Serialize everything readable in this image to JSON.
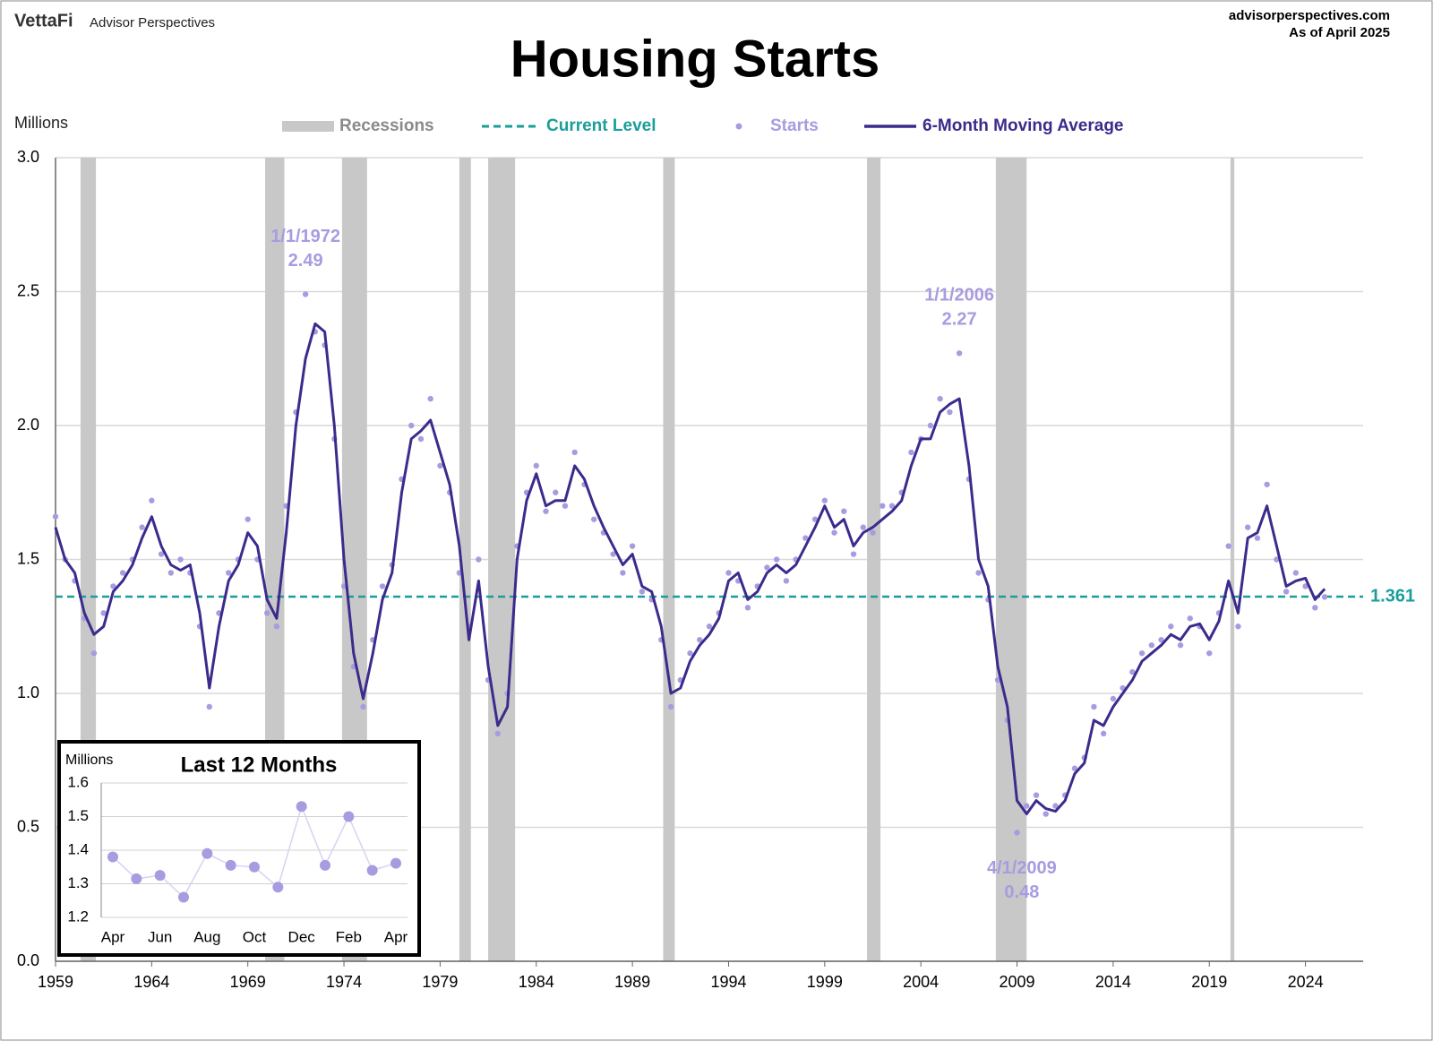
{
  "header": {
    "brand": "VettaFi",
    "brand_sub": "Advisor Perspectives",
    "site": "advisorperspectives.com",
    "as_of": "As of April 2025"
  },
  "chart_data": [
    {
      "type": "line",
      "title": "Housing Starts",
      "y_label": "Millions",
      "xlim": [
        1959,
        2027
      ],
      "xticks": [
        1959,
        1964,
        1969,
        1974,
        1979,
        1984,
        1989,
        1994,
        1999,
        2004,
        2009,
        2014,
        2019,
        2024
      ],
      "ylim": [
        0,
        3
      ],
      "yticks": [
        {
          "value": 0,
          "label": "0.0"
        },
        0.5,
        {
          "value": 1,
          "label": "1.0"
        },
        1.5,
        {
          "value": 2,
          "label": "2.0"
        },
        2.5,
        {
          "value": 3,
          "label": "3.0"
        }
      ],
      "grid": true,
      "recessions": {
        "name": "Recessions",
        "color": "#c8c8c8",
        "periods": [
          [
            1960.3,
            1961.1
          ],
          [
            1969.9,
            1970.9
          ],
          [
            1973.9,
            1975.2
          ],
          [
            1980.0,
            1980.6
          ],
          [
            1981.5,
            1982.9
          ],
          [
            1990.6,
            1991.2
          ],
          [
            2001.2,
            2001.9
          ],
          [
            2007.9,
            2009.5
          ],
          [
            2020.1,
            2020.3
          ]
        ]
      },
      "current_level": {
        "name": "Current Level",
        "value": 1.361,
        "color": "#1a9e9a"
      },
      "x": [
        1959,
        1959.5,
        1960,
        1960.5,
        1961,
        1961.5,
        1962,
        1962.5,
        1963,
        1963.5,
        1964,
        1964.5,
        1965,
        1965.5,
        1966,
        1966.5,
        1967,
        1967.5,
        1968,
        1968.5,
        1969,
        1969.5,
        1970,
        1970.5,
        1971,
        1971.5,
        1972,
        1972.5,
        1973,
        1973.5,
        1974,
        1974.5,
        1975,
        1975.5,
        1976,
        1976.5,
        1977,
        1977.5,
        1978,
        1978.5,
        1979,
        1979.5,
        1980,
        1980.5,
        1981,
        1981.5,
        1982,
        1982.5,
        1983,
        1983.5,
        1984,
        1984.5,
        1985,
        1985.5,
        1986,
        1986.5,
        1987,
        1987.5,
        1988,
        1988.5,
        1989,
        1989.5,
        1990,
        1990.5,
        1991,
        1991.5,
        1992,
        1992.5,
        1993,
        1993.5,
        1994,
        1994.5,
        1995,
        1995.5,
        1996,
        1996.5,
        1997,
        1997.5,
        1998,
        1998.5,
        1999,
        1999.5,
        2000,
        2000.5,
        2001,
        2001.5,
        2002,
        2002.5,
        2003,
        2003.5,
        2004,
        2004.5,
        2005,
        2005.5,
        2006,
        2006.5,
        2007,
        2007.5,
        2008,
        2008.5,
        2009,
        2009.5,
        2010,
        2010.5,
        2011,
        2011.5,
        2012,
        2012.5,
        2013,
        2013.5,
        2014,
        2014.5,
        2015,
        2015.5,
        2016,
        2016.5,
        2017,
        2017.5,
        2018,
        2018.5,
        2019,
        2019.5,
        2020,
        2020.5,
        2021,
        2021.5,
        2022,
        2022.5,
        2023,
        2023.5,
        2024,
        2024.5,
        2025
      ],
      "series": [
        {
          "name": "Starts",
          "type": "scatter",
          "color": "#a99be0",
          "values": [
            1.66,
            1.5,
            1.42,
            1.28,
            1.15,
            1.3,
            1.4,
            1.45,
            1.5,
            1.62,
            1.72,
            1.52,
            1.45,
            1.5,
            1.45,
            1.25,
            0.95,
            1.3,
            1.45,
            1.5,
            1.65,
            1.5,
            1.3,
            1.25,
            1.7,
            2.05,
            2.49,
            2.35,
            2.3,
            1.95,
            1.4,
            1.1,
            0.95,
            1.2,
            1.4,
            1.48,
            1.8,
            2.0,
            1.95,
            2.1,
            1.85,
            1.75,
            1.45,
            1.25,
            1.5,
            1.05,
            0.85,
            1.0,
            1.55,
            1.75,
            1.85,
            1.68,
            1.75,
            1.7,
            1.9,
            1.78,
            1.65,
            1.6,
            1.52,
            1.45,
            1.55,
            1.38,
            1.35,
            1.2,
            0.95,
            1.05,
            1.15,
            1.2,
            1.25,
            1.3,
            1.45,
            1.42,
            1.32,
            1.4,
            1.47,
            1.5,
            1.42,
            1.5,
            1.58,
            1.65,
            1.72,
            1.6,
            1.68,
            1.52,
            1.62,
            1.6,
            1.7,
            1.7,
            1.75,
            1.9,
            1.95,
            2.0,
            2.1,
            2.05,
            2.27,
            1.8,
            1.45,
            1.35,
            1.05,
            0.9,
            0.48,
            0.58,
            0.62,
            0.55,
            0.58,
            0.62,
            0.72,
            0.76,
            0.95,
            0.85,
            0.98,
            1.02,
            1.08,
            1.15,
            1.18,
            1.2,
            1.25,
            1.18,
            1.28,
            1.25,
            1.15,
            1.3,
            1.55,
            1.25,
            1.62,
            1.58,
            1.78,
            1.5,
            1.38,
            1.45,
            1.4,
            1.32,
            1.36
          ]
        },
        {
          "name": "6-Month Moving Average",
          "type": "line",
          "color": "#3d2a8c",
          "values": [
            1.62,
            1.5,
            1.45,
            1.3,
            1.22,
            1.25,
            1.38,
            1.42,
            1.48,
            1.58,
            1.66,
            1.55,
            1.48,
            1.46,
            1.48,
            1.3,
            1.02,
            1.25,
            1.42,
            1.48,
            1.6,
            1.55,
            1.35,
            1.28,
            1.6,
            2.0,
            2.25,
            2.38,
            2.35,
            2.0,
            1.5,
            1.15,
            0.98,
            1.15,
            1.35,
            1.45,
            1.75,
            1.95,
            1.98,
            2.02,
            1.9,
            1.78,
            1.55,
            1.2,
            1.42,
            1.1,
            0.88,
            0.95,
            1.5,
            1.72,
            1.82,
            1.7,
            1.72,
            1.72,
            1.85,
            1.8,
            1.7,
            1.62,
            1.55,
            1.48,
            1.52,
            1.4,
            1.38,
            1.25,
            1.0,
            1.02,
            1.12,
            1.18,
            1.22,
            1.28,
            1.42,
            1.45,
            1.35,
            1.38,
            1.45,
            1.48,
            1.45,
            1.48,
            1.55,
            1.62,
            1.7,
            1.62,
            1.65,
            1.55,
            1.6,
            1.62,
            1.65,
            1.68,
            1.72,
            1.85,
            1.95,
            1.95,
            2.05,
            2.08,
            2.1,
            1.85,
            1.5,
            1.4,
            1.1,
            0.95,
            0.6,
            0.55,
            0.6,
            0.57,
            0.56,
            0.6,
            0.7,
            0.74,
            0.9,
            0.88,
            0.95,
            1.0,
            1.05,
            1.12,
            1.15,
            1.18,
            1.22,
            1.2,
            1.25,
            1.26,
            1.2,
            1.27,
            1.42,
            1.3,
            1.58,
            1.6,
            1.7,
            1.55,
            1.4,
            1.42,
            1.43,
            1.35,
            1.39
          ]
        }
      ],
      "annotations": [
        {
          "label": "1/1/1972",
          "x": 1972,
          "y": 2.49,
          "position": "above"
        },
        {
          "label": "1/1/2006",
          "x": 2006,
          "y": 2.27,
          "position": "above"
        },
        {
          "label": "4/1/2009",
          "x": 2009.25,
          "y": 0.48,
          "position": "below"
        }
      ]
    },
    {
      "type": "line",
      "title": "Last 12 Months",
      "y_label": "Millions",
      "categories": [
        "Apr",
        null,
        "Jun",
        null,
        "Aug",
        null,
        "Oct",
        null,
        "Dec",
        null,
        "Feb",
        null,
        "Apr"
      ],
      "values": [
        1.38,
        1.315,
        1.325,
        1.26,
        1.39,
        1.355,
        1.35,
        1.29,
        1.53,
        1.355,
        1.5,
        1.34,
        1.361
      ],
      "color": "#a99be0",
      "line_color": "#d8d2f2",
      "ylim": [
        1.2,
        1.6
      ],
      "yticks": [
        1.2,
        1.3,
        1.4,
        1.5,
        1.6
      ],
      "grid": true
    }
  ]
}
